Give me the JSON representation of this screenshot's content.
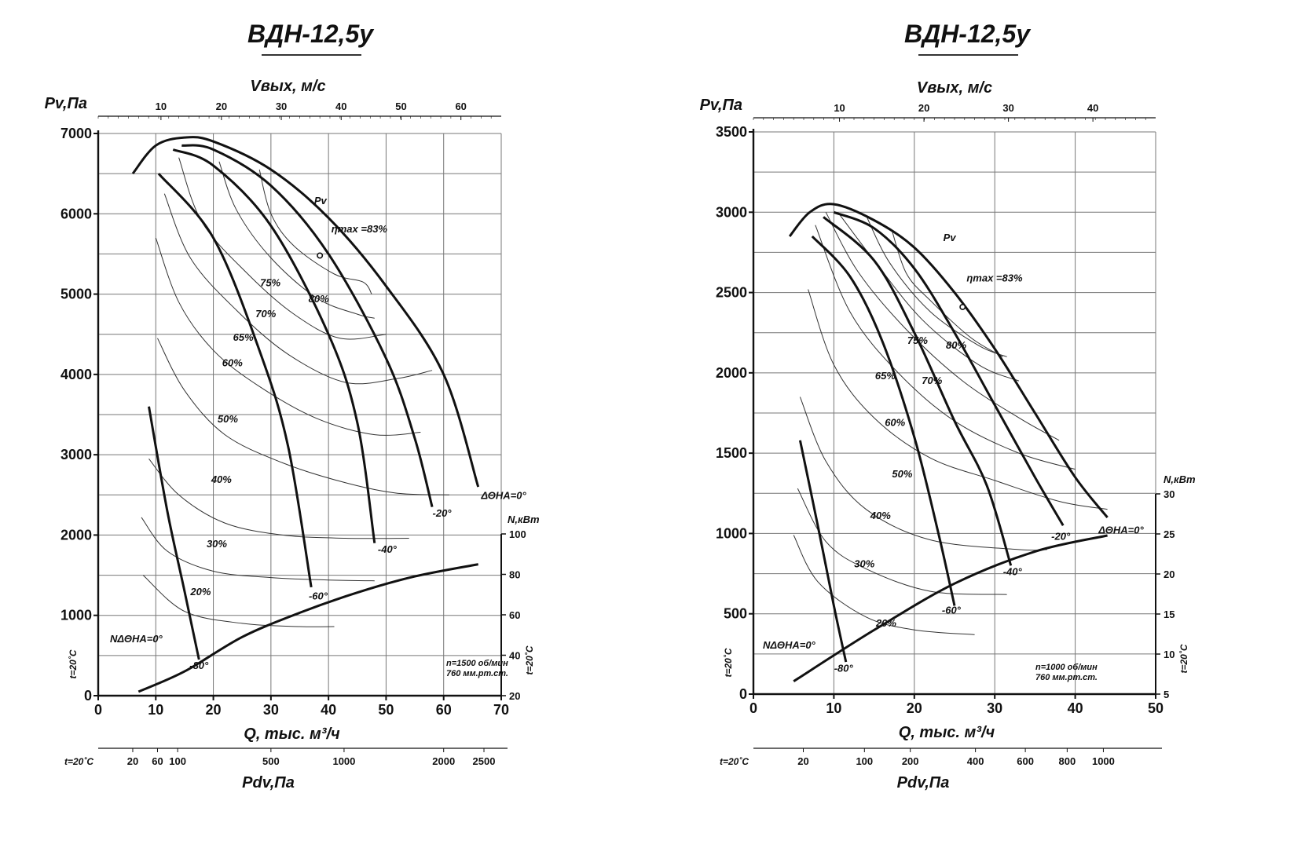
{
  "chart_data": [
    {
      "type": "line",
      "title": "ВДН-12,5у",
      "xlabel": "Q, тыс. м³/ч",
      "ylabel": "Pv,Па",
      "xlim": [
        0,
        70
      ],
      "ylim": [
        0,
        7000
      ],
      "x_ticks": [
        "0",
        "10",
        "20",
        "30",
        "40",
        "50",
        "60",
        "70"
      ],
      "y_ticks": [
        "0",
        "1000",
        "2000",
        "3000",
        "4000",
        "5000",
        "6000",
        "7000"
      ],
      "top_axis": {
        "label": "Vвых, м/с",
        "ticks": [
          "10",
          "20",
          "30",
          "40",
          "50",
          "60"
        ],
        "tick_positions_q": [
          10.9,
          21.4,
          31.8,
          42.2,
          52.6,
          63.0
        ]
      },
      "bottom_axis": {
        "label": "Pdv,Па",
        "temp_label": "t=20˚C",
        "ticks": [
          "20",
          "60",
          "100",
          "500",
          "1000",
          "2000",
          "2500"
        ],
        "tick_positions_q": [
          6.0,
          10.3,
          13.8,
          30.0,
          42.7,
          60.0,
          67.0
        ]
      },
      "power_axis": {
        "label": "N,кВт",
        "range": [
          20,
          100
        ],
        "ticks": [
          "20",
          "40",
          "60",
          "80",
          "100"
        ],
        "temp_label": "t=20˚C"
      },
      "left_temp_label": "t=20˚C",
      "pv_label": "Pv",
      "eta_label": "ηmax =83%",
      "eta_point": [
        38.5,
        5480
      ],
      "note": [
        "n=1500 об/мин",
        "760 мм.рт.ст."
      ],
      "power_curve_label": "NΔΘНА=0°",
      "power_curve": [
        [
          7,
          22
        ],
        [
          15,
          32
        ],
        [
          25,
          49
        ],
        [
          35,
          61
        ],
        [
          45,
          71
        ],
        [
          55,
          79
        ],
        [
          66,
          85
        ]
      ],
      "angle_curves": [
        {
          "label": "ΔΘНА=0°",
          "points": [
            [
              6,
              6500
            ],
            [
              10,
              6850
            ],
            [
              15,
              6950
            ],
            [
              20,
              6900
            ],
            [
              30,
              6550
            ],
            [
              40,
              5950
            ],
            [
              50,
              5100
            ],
            [
              60,
              4000
            ],
            [
              66,
              2600
            ]
          ]
        },
        {
          "label": "-20°",
          "points": [
            [
              14.5,
              6850
            ],
            [
              20,
              6800
            ],
            [
              30,
              6350
            ],
            [
              40,
              5500
            ],
            [
              50,
              4200
            ],
            [
              55,
              3200
            ],
            [
              58,
              2350
            ]
          ]
        },
        {
          "label": "-40°",
          "points": [
            [
              13,
              6800
            ],
            [
              20,
              6600
            ],
            [
              30,
              5850
            ],
            [
              40,
              4500
            ],
            [
              45,
              3400
            ],
            [
              48,
              1900
            ]
          ]
        },
        {
          "label": "-60°",
          "points": [
            [
              10.5,
              6500
            ],
            [
              20,
              5700
            ],
            [
              28,
              4300
            ],
            [
              33,
              3100
            ],
            [
              37,
              1350
            ]
          ]
        },
        {
          "label": "-80°",
          "points": [
            [
              8.8,
              3600
            ],
            [
              12,
              2300
            ],
            [
              15,
              1300
            ],
            [
              17.5,
              450
            ]
          ]
        }
      ],
      "efficiency_levels": [
        "20%",
        "30%",
        "40%",
        "50%",
        "60%",
        "65%",
        "70%",
        "75%",
        "80%"
      ]
    },
    {
      "type": "line",
      "title": "ВДН-12,5у",
      "xlabel": "Q, тыс. м³/ч",
      "ylabel": "Pv,Па",
      "xlim": [
        0,
        50
      ],
      "ylim": [
        0,
        3500
      ],
      "x_ticks": [
        "0",
        "10",
        "20",
        "30",
        "40",
        "50"
      ],
      "y_ticks": [
        "0",
        "500",
        "1000",
        "1500",
        "2000",
        "2500",
        "3000",
        "3500"
      ],
      "top_axis": {
        "label": "Vвых, м/с",
        "ticks": [
          "10",
          "20",
          "30",
          "40"
        ],
        "tick_positions_q": [
          10.7,
          21.2,
          31.7,
          42.2
        ]
      },
      "bottom_axis": {
        "label": "Pdv,Па",
        "temp_label": "t=20˚C",
        "ticks": [
          "20",
          "100",
          "200",
          "400",
          "600",
          "800",
          "1000"
        ],
        "tick_positions_q": [
          6.2,
          13.8,
          19.5,
          27.6,
          33.8,
          39.0,
          43.5
        ]
      },
      "power_axis": {
        "label": "N,кВт",
        "range": [
          5,
          30
        ],
        "ticks": [
          "5",
          "10",
          "15",
          "20",
          "25",
          "30"
        ],
        "temp_label": "t=20˚C"
      },
      "left_temp_label": "t=20˚C",
      "pv_label": "Pv",
      "eta_label": "ηmax =83%",
      "eta_point": [
        26,
        2410
      ],
      "note": [
        "n=1000 об/мин",
        "760 мм.рт.ст."
      ],
      "power_curve_label": "NΔΘНА=0°",
      "power_curve": [
        [
          5,
          6.6
        ],
        [
          15,
          13.0
        ],
        [
          25,
          18.8
        ],
        [
          35,
          22.8
        ],
        [
          44,
          24.8
        ]
      ],
      "angle_curves": [
        {
          "label": "ΔΘНА=0°",
          "points": [
            [
              4.5,
              2850
            ],
            [
              7,
              3000
            ],
            [
              10,
              3050
            ],
            [
              15,
              2950
            ],
            [
              20,
              2780
            ],
            [
              25,
              2500
            ],
            [
              30,
              2150
            ],
            [
              35,
              1750
            ],
            [
              40,
              1350
            ],
            [
              44,
              1100
            ]
          ]
        },
        {
          "label": "-20°",
          "points": [
            [
              10,
              3000
            ],
            [
              15,
              2900
            ],
            [
              20,
              2650
            ],
            [
              25,
              2250
            ],
            [
              30,
              1800
            ],
            [
              35,
              1350
            ],
            [
              38.5,
              1050
            ]
          ]
        },
        {
          "label": "-40°",
          "points": [
            [
              8.7,
              2970
            ],
            [
              15,
              2700
            ],
            [
              20,
              2250
            ],
            [
              25,
              1700
            ],
            [
              29,
              1300
            ],
            [
              32,
              800
            ]
          ]
        },
        {
          "label": "-60°",
          "points": [
            [
              7.3,
              2850
            ],
            [
              12,
              2600
            ],
            [
              16,
              2200
            ],
            [
              20,
              1600
            ],
            [
              23,
              1000
            ],
            [
              25,
              550
            ]
          ]
        },
        {
          "label": "-80°",
          "points": [
            [
              5.8,
              1580
            ],
            [
              8,
              1050
            ],
            [
              10,
              550
            ],
            [
              11.5,
              200
            ]
          ]
        }
      ],
      "efficiency_levels": [
        "20%",
        "30%",
        "40%",
        "50%",
        "60%",
        "65%",
        "70%",
        "75%",
        "80%"
      ]
    }
  ]
}
